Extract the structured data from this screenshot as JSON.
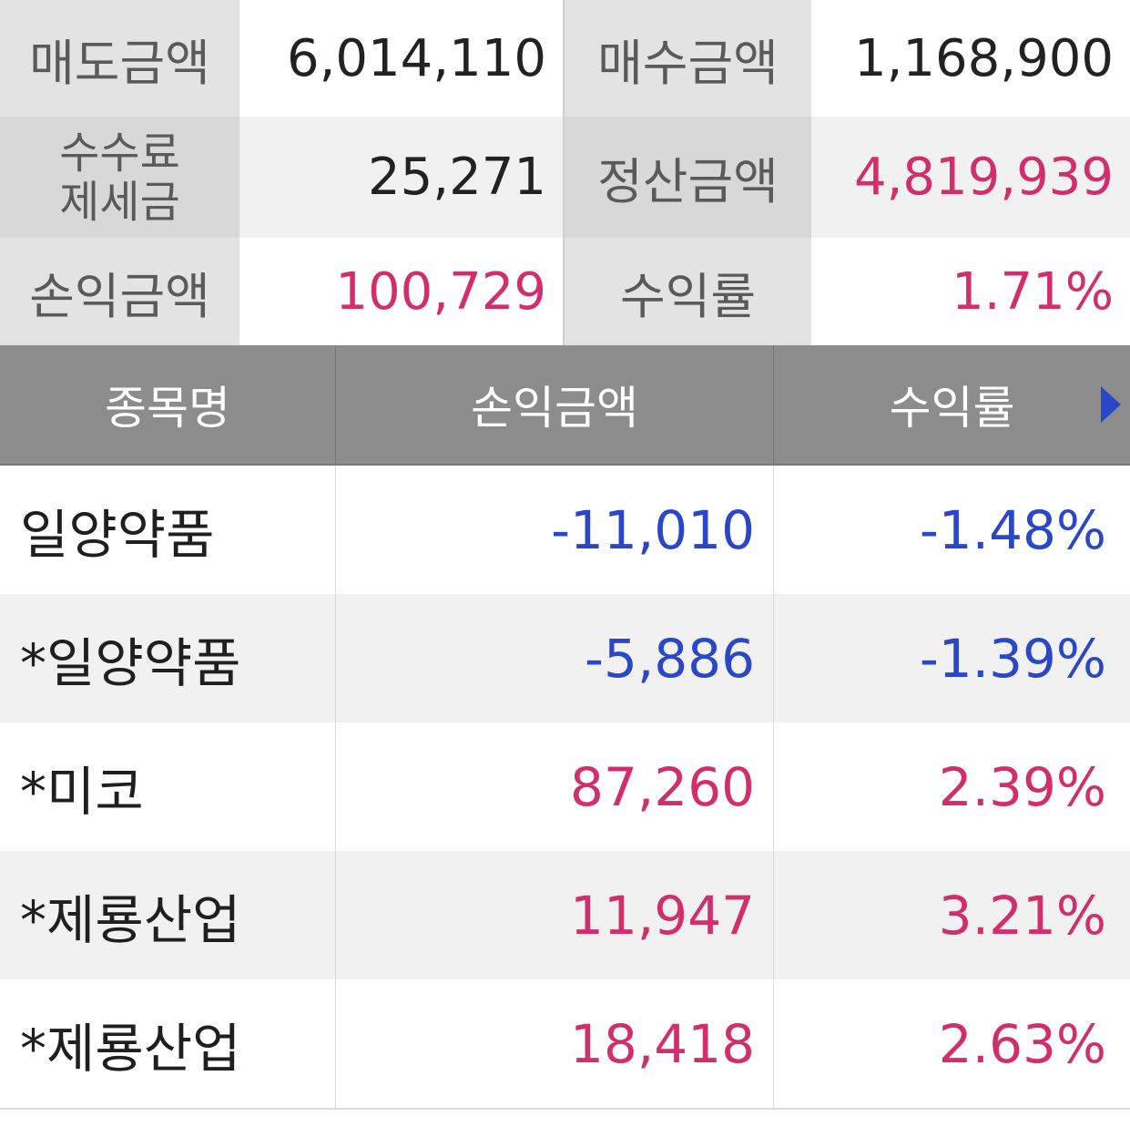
{
  "summary": {
    "sell_amount": {
      "label": "매도금액",
      "value": "6,014,110"
    },
    "buy_amount": {
      "label": "매수금액",
      "value": "1,168,900"
    },
    "fee_tax": {
      "label_line1": "수수료",
      "label_line2": "제세금",
      "value": "25,271"
    },
    "settlement_amount": {
      "label": "정산금액",
      "value": "4,819,939"
    },
    "profit_amount": {
      "label": "손익금액",
      "value": "100,729"
    },
    "return_rate": {
      "label": "수익률",
      "value": "1.71%"
    }
  },
  "table": {
    "headers": {
      "name": "종목명",
      "profit": "손익금액",
      "rate": "수익률"
    },
    "more_icon": "right-triangle-arrow",
    "rows": [
      {
        "name": "일양약품",
        "profit": "-11,010",
        "rate": "-1.48%",
        "trend": "down"
      },
      {
        "name": "*일양약품",
        "profit": "-5,886",
        "rate": "-1.39%",
        "trend": "down"
      },
      {
        "name": "*미코",
        "profit": "87,260",
        "rate": "2.39%",
        "trend": "up"
      },
      {
        "name": "*제룡산업",
        "profit": "11,947",
        "rate": "3.21%",
        "trend": "up"
      },
      {
        "name": "*제룡산업",
        "profit": "18,418",
        "rate": "2.63%",
        "trend": "up"
      }
    ]
  },
  "colors": {
    "positive": "#d22e6b",
    "negative": "#2a46c9",
    "header_bg": "#8c8c8c"
  }
}
